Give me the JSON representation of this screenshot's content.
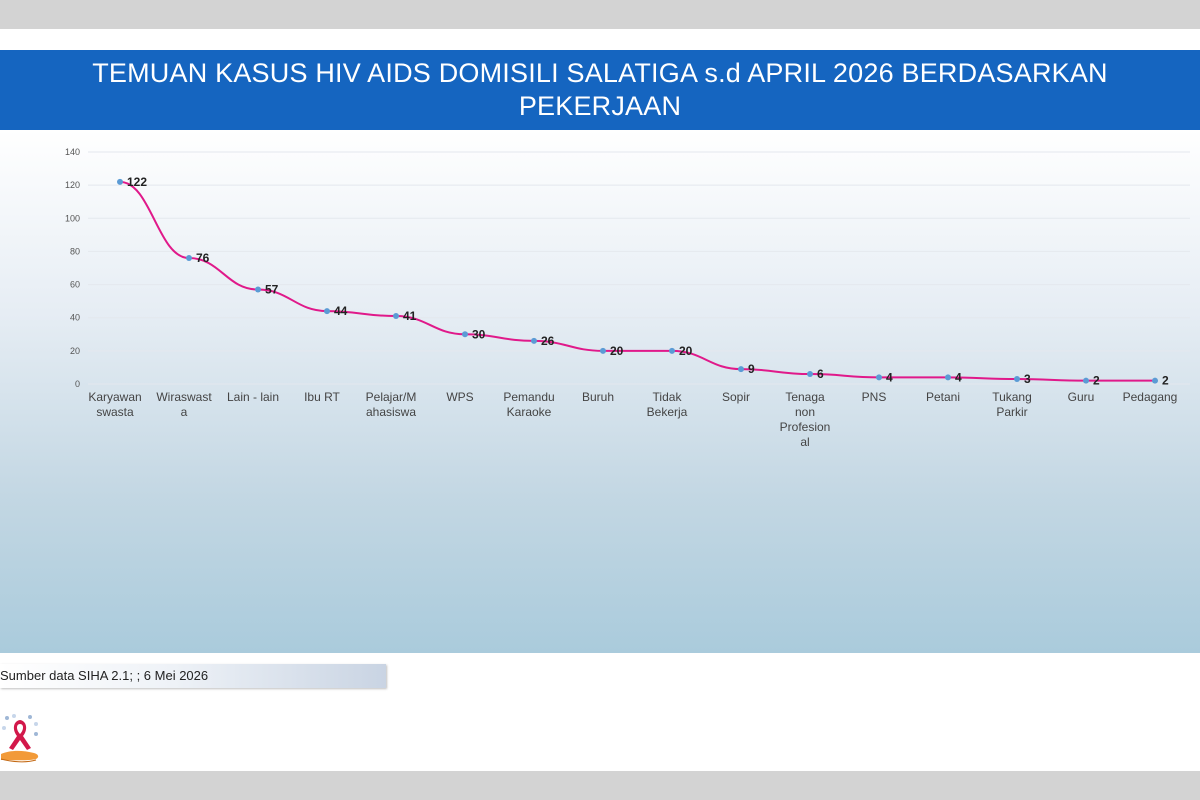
{
  "title": "TEMUAN KASUS HIV AIDS DOMISILI  SALATIGA  s.d APRIL 2026 BERDASARKAN PEKERJAAN",
  "source": "Sumber data SIHA 2.1; ; 6 Mei 2026",
  "colors": {
    "header": "#1565c0",
    "line": "#e0198a",
    "marker": "#5b9bd5"
  },
  "logo_icon": "red-ribbon-hand-icon",
  "chart_data": {
    "type": "line",
    "title": "TEMUAN KASUS HIV AIDS DOMISILI  SALATIGA  s.d APRIL 2026 BERDASARKAN PEKERJAAN",
    "xlabel": "",
    "ylabel": "",
    "ylim": [
      0,
      140
    ],
    "yticks": [
      "0",
      "20",
      "40",
      "60",
      "80",
      "100",
      "120",
      "140"
    ],
    "grid": true,
    "legend": "none",
    "categories": [
      [
        "Karyawan",
        "swasta"
      ],
      [
        "Wiraswast",
        "a"
      ],
      [
        "Lain - lain"
      ],
      [
        "Ibu RT"
      ],
      [
        "Pelajar/M",
        "ahasiswa"
      ],
      [
        "WPS"
      ],
      [
        "Pemandu",
        "Karaoke"
      ],
      [
        "Buruh"
      ],
      [
        "Tidak",
        "Bekerja"
      ],
      [
        "Sopir"
      ],
      [
        "Tenaga",
        "non",
        "Profesion",
        "al"
      ],
      [
        "PNS"
      ],
      [
        "Petani"
      ],
      [
        "Tukang",
        "Parkir"
      ],
      [
        "Guru"
      ],
      [
        "Pedagang"
      ]
    ],
    "values": [
      122,
      76,
      57,
      44,
      41,
      30,
      26,
      20,
      20,
      9,
      6,
      4,
      4,
      3,
      2,
      2
    ],
    "data_labels": [
      "122",
      "76",
      "57",
      "44",
      "41",
      "30",
      "26",
      "20",
      "20",
      "9",
      "6",
      "4",
      "4",
      "3",
      "2",
      "2"
    ]
  }
}
